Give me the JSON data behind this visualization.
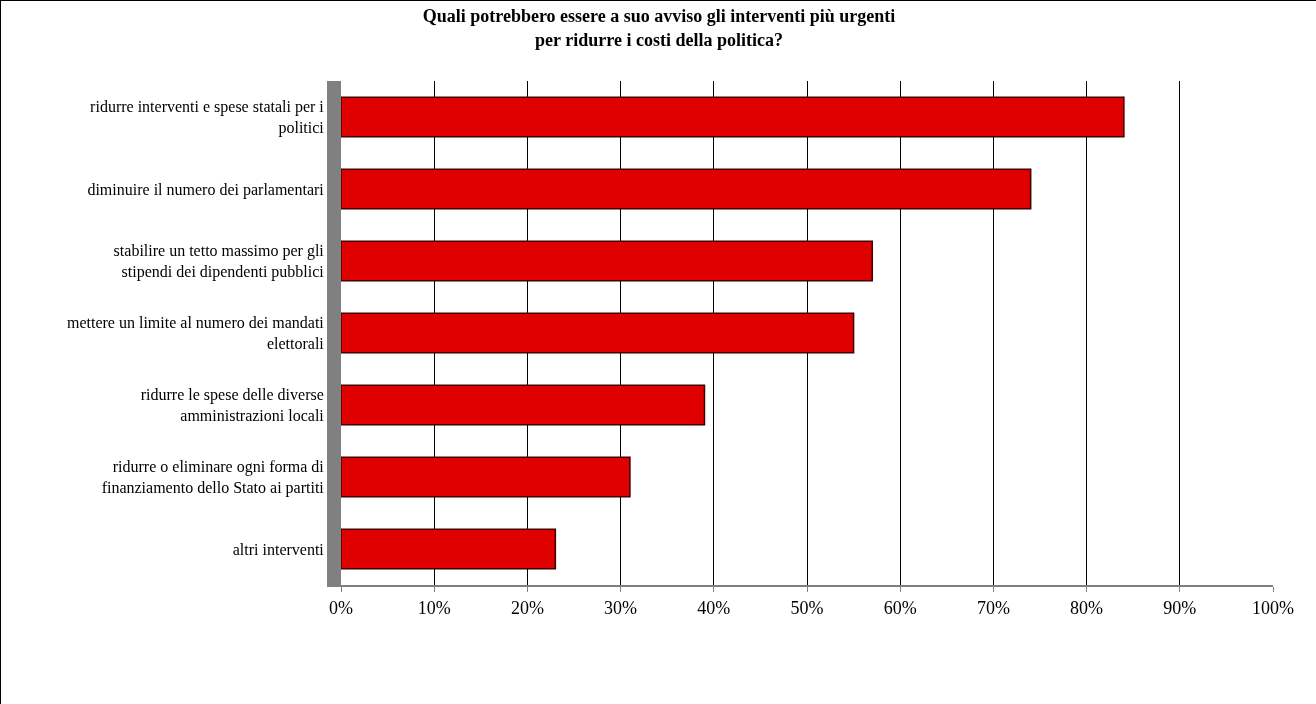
{
  "chart_data": {
    "type": "bar",
    "orientation": "horizontal",
    "title": "Quali potrebbero essere a suo avviso gli interventi più urgenti per ridurre i costi della politica?",
    "categories": [
      "ridurre interventi e spese statali per i politici",
      "diminuire il numero dei parlamentari",
      "stabilire un tetto massimo per gli stipendi dei dipendenti pubblici",
      "mettere un limite al numero dei mandati elettorali",
      "ridurre le spese delle diverse amministrazioni locali",
      "ridurre o eliminare ogni forma di finanziamento dello Stato ai partiti",
      "altri interventi"
    ],
    "values": [
      84,
      74,
      57,
      55,
      39,
      31,
      23
    ],
    "color": "#e00000",
    "xlim": [
      0,
      100
    ],
    "xticks": [
      {
        "value": 0,
        "label": "0%"
      },
      {
        "value": 10,
        "label": "10%"
      },
      {
        "value": 20,
        "label": "20%"
      },
      {
        "value": 30,
        "label": "30%"
      },
      {
        "value": 40,
        "label": "40%"
      },
      {
        "value": 50,
        "label": "50%"
      },
      {
        "value": 60,
        "label": "60%"
      },
      {
        "value": 70,
        "label": "70%"
      },
      {
        "value": 80,
        "label": "80%"
      },
      {
        "value": 90,
        "label": "90%"
      },
      {
        "value": 100,
        "label": "100%"
      }
    ],
    "grid": "x"
  }
}
